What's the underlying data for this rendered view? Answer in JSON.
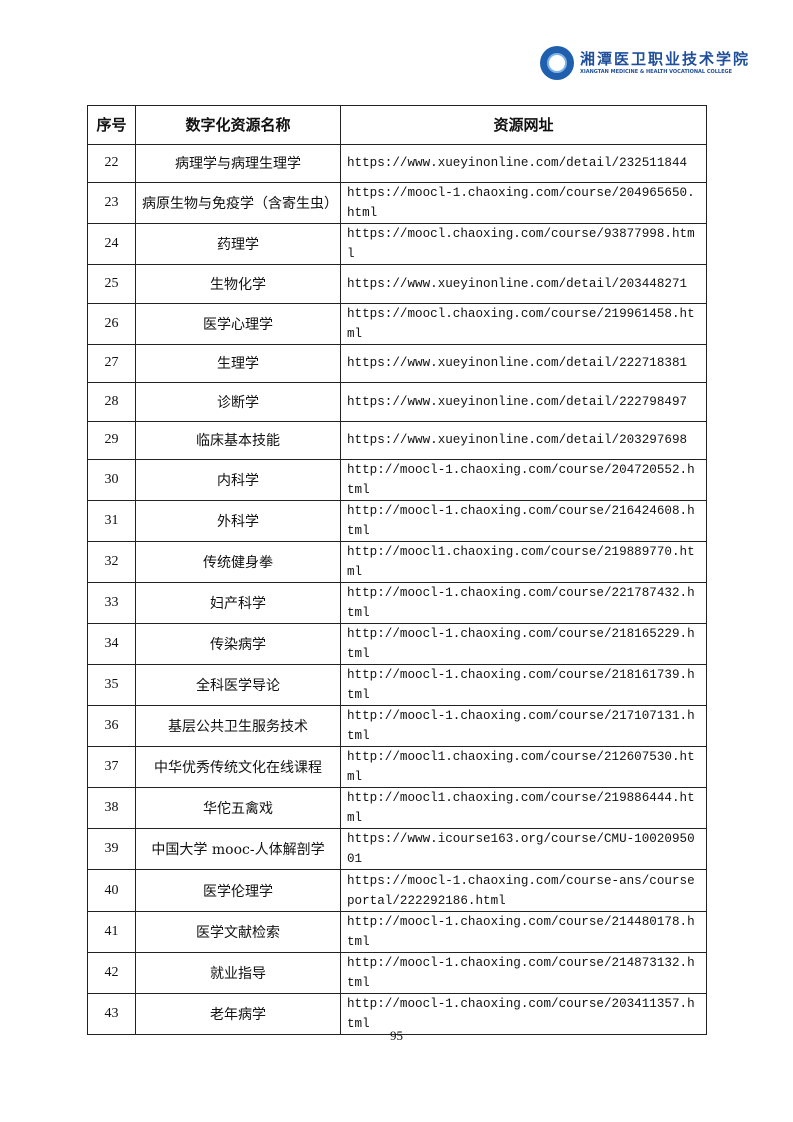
{
  "header": {
    "logo_cn": "湘潭医卫职业技术学院",
    "logo_en": "XIANGTAN MEDICINE & HEALTH VOCATIONAL COLLEGE",
    "brand_color": "#1f5fae"
  },
  "table": {
    "columns": [
      "序号",
      "数字化资源名称",
      "资源网址"
    ],
    "rows": [
      {
        "no": "22",
        "name": "病理学与病理生理学",
        "url": "https://www.xueyinonline.com/detail/232511844"
      },
      {
        "no": "23",
        "name": "病原生物与免疫学（含寄生虫）",
        "url": "https://moocl-1.chaoxing.com/course/204965650.html"
      },
      {
        "no": "24",
        "name": "药理学",
        "url": "https://moocl.chaoxing.com/course/93877998.html"
      },
      {
        "no": "25",
        "name": "生物化学",
        "url": "https://www.xueyinonline.com/detail/203448271"
      },
      {
        "no": "26",
        "name": "医学心理学",
        "url": "https://moocl.chaoxing.com/course/219961458.html"
      },
      {
        "no": "27",
        "name": "生理学",
        "url": "https://www.xueyinonline.com/detail/222718381"
      },
      {
        "no": "28",
        "name": "诊断学",
        "url": "https://www.xueyinonline.com/detail/222798497"
      },
      {
        "no": "29",
        "name": "临床基本技能",
        "url": "https://www.xueyinonline.com/detail/203297698"
      },
      {
        "no": "30",
        "name": "内科学",
        "url": "http://moocl-1.chaoxing.com/course/204720552.html"
      },
      {
        "no": "31",
        "name": "外科学",
        "url": "http://moocl-1.chaoxing.com/course/216424608.html"
      },
      {
        "no": "32",
        "name": "传统健身拳",
        "url": "http://moocl1.chaoxing.com/course/219889770.html"
      },
      {
        "no": "33",
        "name": "妇产科学",
        "url": "http://moocl-1.chaoxing.com/course/221787432.html"
      },
      {
        "no": "34",
        "name": "传染病学",
        "url": "http://moocl-1.chaoxing.com/course/218165229.html"
      },
      {
        "no": "35",
        "name": "全科医学导论",
        "url": "http://moocl-1.chaoxing.com/course/218161739.html"
      },
      {
        "no": "36",
        "name": "基层公共卫生服务技术",
        "url": "http://moocl-1.chaoxing.com/course/217107131.html"
      },
      {
        "no": "37",
        "name": "中华优秀传统文化在线课程",
        "url": "http://moocl1.chaoxing.com/course/212607530.html"
      },
      {
        "no": "38",
        "name": "华佗五禽戏",
        "url": "http://moocl1.chaoxing.com/course/219886444.html"
      },
      {
        "no": "39",
        "name": "中国大学 mooc-人体解剖学",
        "url": "https://www.icourse163.org/course/CMU-1002095001"
      },
      {
        "no": "40",
        "name": "医学伦理学",
        "url": "https://moocl-1.chaoxing.com/course-ans/courseportal/222292186.html"
      },
      {
        "no": "41",
        "name": "医学文献检索",
        "url": "http://moocl-1.chaoxing.com/course/214480178.html"
      },
      {
        "no": "42",
        "name": "就业指导",
        "url": "http://moocl-1.chaoxing.com/course/214873132.html"
      },
      {
        "no": "43",
        "name": "老年病学",
        "url": "http://moocl-1.chaoxing.com/course/203411357.html"
      }
    ]
  },
  "footer": {
    "page_number": "95"
  }
}
